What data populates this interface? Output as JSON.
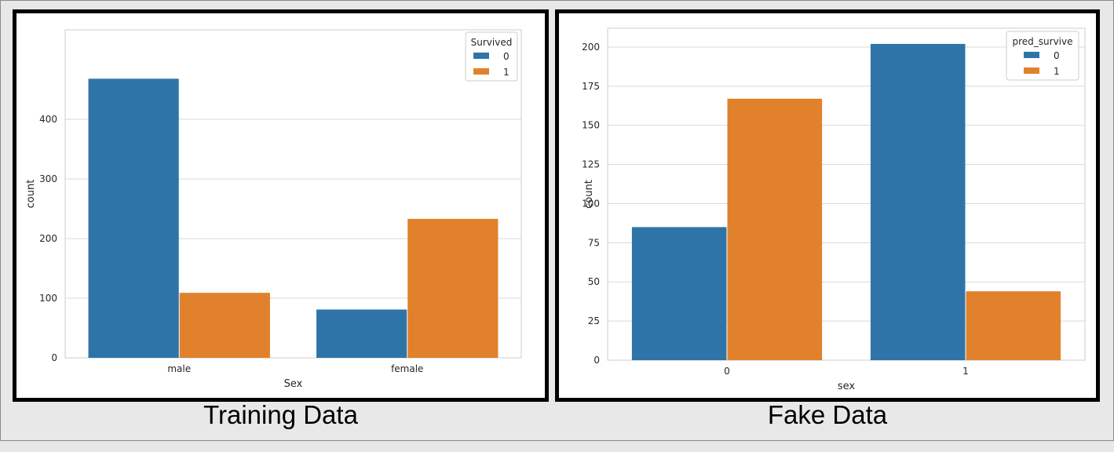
{
  "captions": {
    "left": "Training Data",
    "right": "Fake Data"
  },
  "colors": {
    "series0": "#2f74a8",
    "series1": "#e1812c",
    "grid": "#d9d9d9",
    "frame": "#cccccc"
  },
  "chart_data": [
    {
      "type": "bar",
      "categories": [
        "male",
        "female"
      ],
      "xlabel": "Sex",
      "ylabel": "count",
      "ylim": [
        0,
        550
      ],
      "yticks": [
        0,
        100,
        200,
        300,
        400
      ],
      "legend": {
        "title": "Survived",
        "placement": "top-right"
      },
      "series": [
        {
          "name": "0",
          "values": [
            468,
            81
          ]
        },
        {
          "name": "1",
          "values": [
            109,
            233
          ]
        }
      ],
      "grid": true
    },
    {
      "type": "bar",
      "categories": [
        "0",
        "1"
      ],
      "xlabel": "sex",
      "ylabel": "count",
      "ylim": [
        0,
        212
      ],
      "yticks": [
        0,
        25,
        50,
        75,
        100,
        125,
        150,
        175,
        200
      ],
      "legend": {
        "title": "pred_survive",
        "placement": "top-right"
      },
      "series": [
        {
          "name": "0",
          "values": [
            85,
            202
          ]
        },
        {
          "name": "1",
          "values": [
            167,
            44
          ]
        }
      ],
      "grid": true
    }
  ]
}
